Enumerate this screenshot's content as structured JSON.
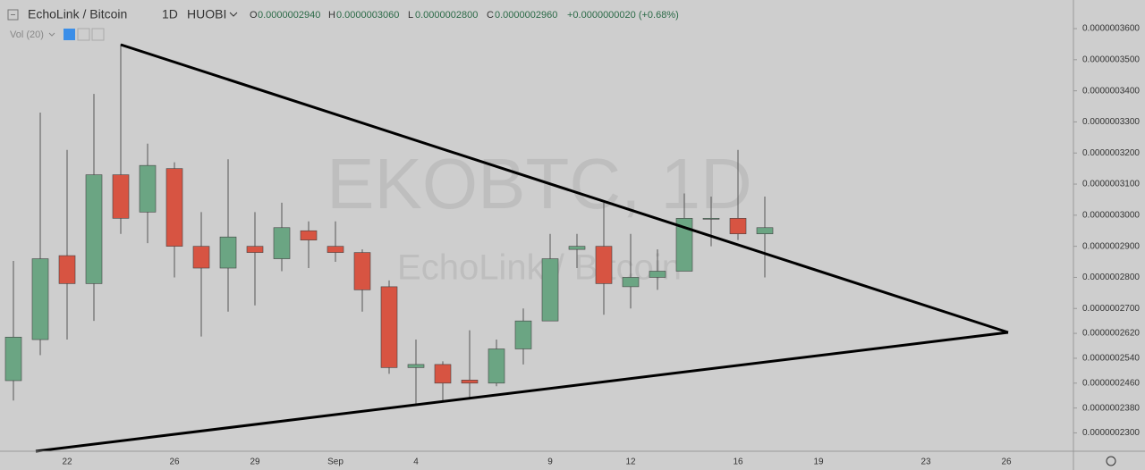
{
  "header": {
    "symbol": "EchoLink / Bitcoin",
    "interval": "1D",
    "exchange": "HUOBI",
    "open": {
      "label": "O",
      "value": "0.0000002940"
    },
    "high": {
      "label": "H",
      "value": "0.0000003060"
    },
    "low": {
      "label": "L",
      "value": "0.0000002800"
    },
    "close": {
      "label": "C",
      "value": "0.0000002960"
    },
    "change": "+0.0000000020 (+0.68%)",
    "indicator": "Vol (20)"
  },
  "chart_data": {
    "type": "candlestick",
    "watermark": {
      "title": "EKOBTC, 1D",
      "subtitle": "EchoLink / Bitcoin"
    },
    "categories": [
      null,
      null,
      "22",
      null,
      null,
      null,
      "26",
      null,
      null,
      "29",
      null,
      null,
      "Sep",
      null,
      null,
      "4",
      null,
      null,
      null,
      null,
      "9",
      null,
      null,
      "12",
      null,
      null,
      null,
      "16",
      null,
      null,
      "19",
      null,
      null,
      null,
      "23",
      null,
      null,
      "26",
      null,
      null
    ],
    "open": [
      2.468e-07,
      2.6e-07,
      2.87e-07,
      2.78e-07,
      3.13e-07,
      3.01e-07,
      3.15e-07,
      2.9e-07,
      2.83e-07,
      2.9e-07,
      2.86e-07,
      2.95e-07,
      2.9e-07,
      2.88e-07,
      2.77e-07,
      2.51e-07,
      2.52e-07,
      2.47e-07,
      2.46e-07,
      2.57e-07,
      2.66e-07,
      2.89e-07,
      2.9e-07,
      2.77e-07,
      2.8e-07,
      2.82e-07,
      2.99e-07,
      2.99e-07,
      2.94e-07,
      null,
      null,
      null,
      null,
      null,
      null,
      null,
      null,
      null,
      null,
      null
    ],
    "high": [
      2.853e-07,
      3.33e-07,
      3.21e-07,
      3.39e-07,
      3.55e-07,
      3.23e-07,
      3.17e-07,
      3.01e-07,
      3.18e-07,
      3.01e-07,
      3.04e-07,
      2.98e-07,
      2.98e-07,
      2.89e-07,
      2.79e-07,
      2.6e-07,
      2.53e-07,
      2.63e-07,
      2.6e-07,
      2.7e-07,
      2.94e-07,
      2.94e-07,
      3.04e-07,
      2.94e-07,
      2.89e-07,
      3.07e-07,
      3.06e-07,
      3.21e-07,
      3.06e-07,
      null,
      null,
      null,
      null,
      null,
      null,
      null,
      null,
      null,
      null,
      null
    ],
    "low": [
      2.404e-07,
      2.55e-07,
      2.6e-07,
      2.66e-07,
      2.94e-07,
      2.91e-07,
      2.8e-07,
      2.61e-07,
      2.69e-07,
      2.71e-07,
      2.82e-07,
      2.83e-07,
      2.85e-07,
      2.69e-07,
      2.49e-07,
      2.39e-07,
      2.4e-07,
      2.41e-07,
      2.45e-07,
      2.52e-07,
      2.66e-07,
      2.83e-07,
      2.68e-07,
      2.7e-07,
      2.76e-07,
      2.82e-07,
      2.9e-07,
      2.92e-07,
      2.8e-07,
      null,
      null,
      null,
      null,
      null,
      null,
      null,
      null,
      null,
      null,
      null
    ],
    "close": [
      2.608e-07,
      2.86e-07,
      2.78e-07,
      3.13e-07,
      2.99e-07,
      3.16e-07,
      2.9e-07,
      2.83e-07,
      2.93e-07,
      2.88e-07,
      2.96e-07,
      2.92e-07,
      2.88e-07,
      2.76e-07,
      2.51e-07,
      2.52e-07,
      2.46e-07,
      2.46e-07,
      2.57e-07,
      2.66e-07,
      2.86e-07,
      2.9e-07,
      2.78e-07,
      2.8e-07,
      2.82e-07,
      2.99e-07,
      2.99e-07,
      2.94e-07,
      2.96e-07,
      null,
      null,
      null,
      null,
      null,
      null,
      null,
      null,
      null,
      null,
      null
    ],
    "up_color": "#6ba583",
    "down_color": "#d75442",
    "ylim": [
      2.241e-07,
      3.692e-07
    ],
    "yticks": [
      {
        "value": 3.6e-07,
        "label": "0.0000003600"
      },
      {
        "value": 3.5e-07,
        "label": "0.0000003500"
      },
      {
        "value": 3.4e-07,
        "label": "0.0000003400"
      },
      {
        "value": 3.3e-07,
        "label": "0.0000003300"
      },
      {
        "value": 3.2e-07,
        "label": "0.0000003200"
      },
      {
        "value": 3.1e-07,
        "label": "0.0000003100"
      },
      {
        "value": 3e-07,
        "label": "0.0000003000"
      },
      {
        "value": 2.9e-07,
        "label": "0.0000002900"
      },
      {
        "value": 2.8e-07,
        "label": "0.0000002800"
      },
      {
        "value": 2.7e-07,
        "label": "0.0000002700"
      },
      {
        "value": 2.62e-07,
        "label": "0.0000002620"
      },
      {
        "value": 2.54e-07,
        "label": "0.0000002540"
      },
      {
        "value": 2.46e-07,
        "label": "0.0000002460"
      },
      {
        "value": 2.38e-07,
        "label": "0.0000002380"
      },
      {
        "value": 2.3e-07,
        "label": "0.0000002300"
      }
    ],
    "grid": false
  }
}
